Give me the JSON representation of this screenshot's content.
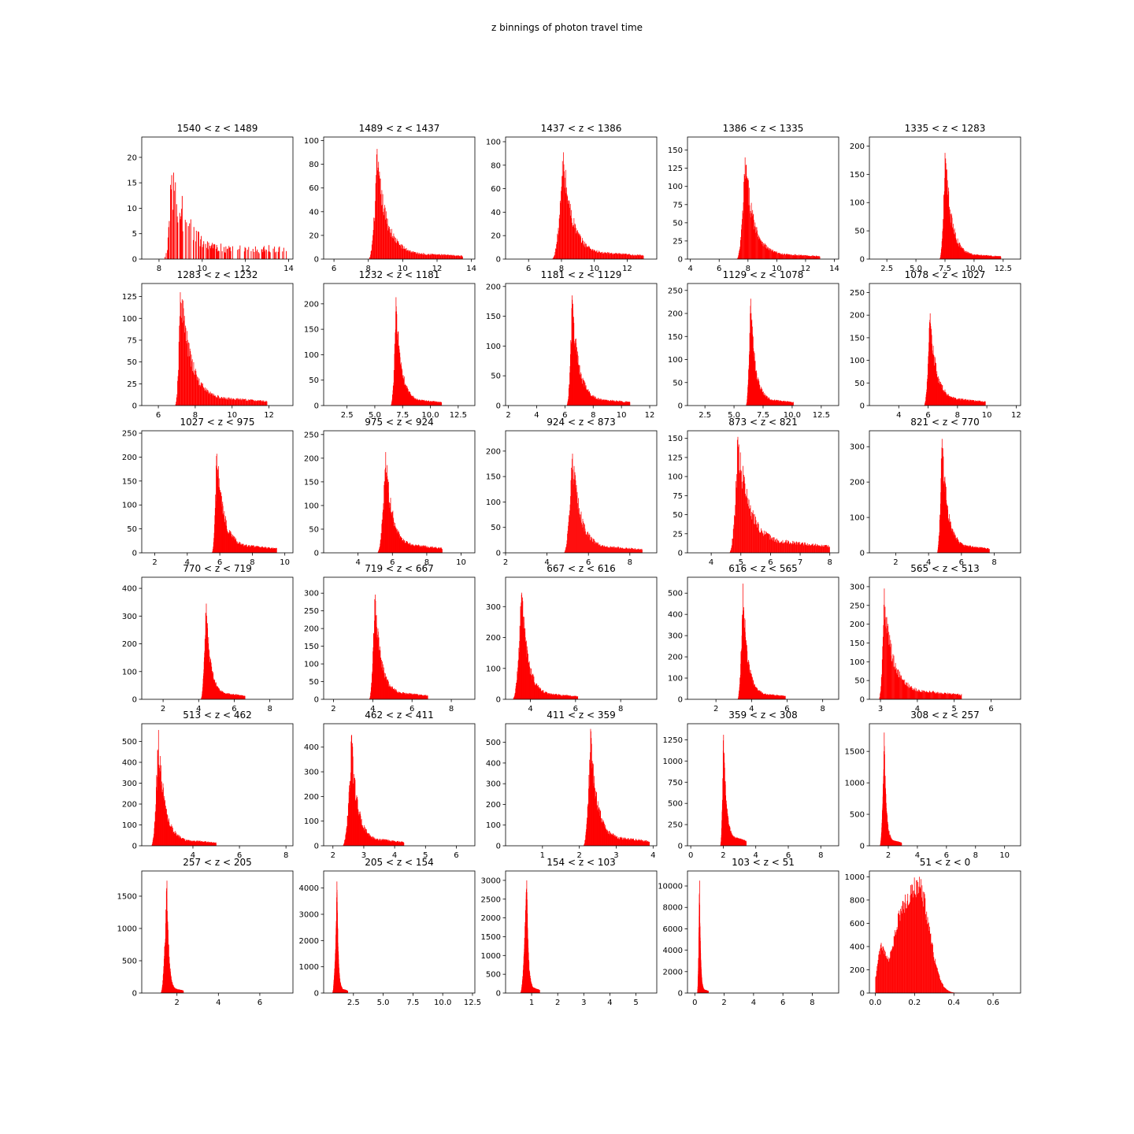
{
  "figure": {
    "suptitle": "z binnings of photon travel time",
    "colors": {
      "bars": "#ff0000",
      "axes": "#000000",
      "background": "#ffffff"
    }
  },
  "chart_data": [
    {
      "type": "bar",
      "title": "1540 < z < 1489",
      "xlim": [
        7.2,
        14.2
      ],
      "ylim": [
        0,
        24
      ],
      "xticks": [
        8,
        10,
        12,
        14
      ],
      "xtick_labels": [
        "8",
        "10",
        "12",
        "14"
      ],
      "yticks": [
        0,
        5,
        10,
        15,
        20
      ],
      "ytick_labels": [
        "0",
        "5",
        "10",
        "15",
        "20"
      ],
      "peak_x": 8.6,
      "peak_y": 17,
      "x_start": 8.2,
      "x_end": 13.9,
      "tail": 0.2,
      "style": "sparse"
    },
    {
      "type": "bar",
      "title": "1489 < z < 1437",
      "xlim": [
        5.4,
        14.2
      ],
      "ylim": [
        0,
        103
      ],
      "xticks": [
        6,
        8,
        10,
        12,
        14
      ],
      "xtick_labels": [
        "6",
        "8",
        "10",
        "12",
        "14"
      ],
      "yticks": [
        0,
        20,
        40,
        60,
        80,
        100
      ],
      "ytick_labels": [
        "0",
        "20",
        "40",
        "60",
        "80",
        "100"
      ],
      "peak_x": 8.5,
      "peak_y": 93,
      "x_start": 8.0,
      "x_end": 13.5,
      "tail": 0.09
    },
    {
      "type": "bar",
      "title": "1437 < z < 1386",
      "xlim": [
        4.6,
        13.8
      ],
      "ylim": [
        0,
        104
      ],
      "xticks": [
        6,
        8,
        10,
        12
      ],
      "xtick_labels": [
        "6",
        "8",
        "10",
        "12"
      ],
      "yticks": [
        0,
        20,
        40,
        60,
        80,
        100
      ],
      "ytick_labels": [
        "0",
        "20",
        "40",
        "60",
        "80",
        "100"
      ],
      "peak_x": 8.1,
      "peak_y": 91,
      "x_start": 7.4,
      "x_end": 13.0,
      "tail": 0.1
    },
    {
      "type": "bar",
      "title": "1386 < z < 1335",
      "xlim": [
        3.8,
        14.3
      ],
      "ylim": [
        0,
        168
      ],
      "xticks": [
        4,
        6,
        8,
        10,
        12,
        14
      ],
      "xtick_labels": [
        "4",
        "6",
        "8",
        "10",
        "12",
        "14"
      ],
      "yticks": [
        0,
        25,
        50,
        75,
        100,
        125,
        150
      ],
      "ytick_labels": [
        "0",
        "25",
        "50",
        "75",
        "100",
        "125",
        "150"
      ],
      "peak_x": 7.8,
      "peak_y": 140,
      "x_start": 7.2,
      "x_end": 13.0,
      "tail": 0.08
    },
    {
      "type": "bar",
      "title": "1335 < z < 1283",
      "xlim": [
        1.0,
        14.0
      ],
      "ylim": [
        0,
        216
      ],
      "xticks": [
        2.5,
        5.0,
        7.5,
        10.0,
        12.5
      ],
      "xtick_labels": [
        "2.5",
        "5.0",
        "7.5",
        "10.0",
        "12.5"
      ],
      "yticks": [
        0,
        50,
        100,
        150,
        200
      ],
      "ytick_labels": [
        "0",
        "50",
        "100",
        "150",
        "200"
      ],
      "peak_x": 7.5,
      "peak_y": 188,
      "x_start": 7.0,
      "x_end": 12.3,
      "tail": 0.07
    },
    {
      "type": "bar",
      "title": "1283 < z < 1232",
      "xlim": [
        5.1,
        13.3
      ],
      "ylim": [
        0,
        140
      ],
      "xticks": [
        6,
        8,
        10,
        12
      ],
      "xtick_labels": [
        "6",
        "8",
        "10",
        "12"
      ],
      "yticks": [
        0,
        25,
        50,
        75,
        100,
        125
      ],
      "ytick_labels": [
        "0",
        "25",
        "50",
        "75",
        "100",
        "125"
      ],
      "peak_x": 7.2,
      "peak_y": 130,
      "x_start": 6.9,
      "x_end": 11.9,
      "tail": 0.1
    },
    {
      "type": "bar",
      "title": "1232 < z < 1181",
      "xlim": [
        0.4,
        14.0
      ],
      "ylim": [
        0,
        240
      ],
      "xticks": [
        2.5,
        5.0,
        7.5,
        10.0,
        12.5
      ],
      "xtick_labels": [
        "2.5",
        "5.0",
        "7.5",
        "10.0",
        "12.5"
      ],
      "yticks": [
        0,
        50,
        100,
        150,
        200
      ],
      "ytick_labels": [
        "0",
        "50",
        "100",
        "150",
        "200"
      ],
      "peak_x": 6.9,
      "peak_y": 213,
      "x_start": 6.4,
      "x_end": 11.0,
      "tail": 0.09
    },
    {
      "type": "bar",
      "title": "1181 < z < 1129",
      "xlim": [
        1.8,
        12.5
      ],
      "ylim": [
        0,
        205
      ],
      "xticks": [
        2,
        4,
        6,
        8,
        10,
        12
      ],
      "xtick_labels": [
        "2",
        "4",
        "6",
        "8",
        "10",
        "12"
      ],
      "yticks": [
        0,
        50,
        100,
        150,
        200
      ],
      "ytick_labels": [
        "0",
        "50",
        "100",
        "150",
        "200"
      ],
      "peak_x": 6.5,
      "peak_y": 185,
      "x_start": 6.1,
      "x_end": 10.6,
      "tail": 0.09
    },
    {
      "type": "bar",
      "title": "1129 < z < 1078",
      "xlim": [
        1.0,
        14.0
      ],
      "ylim": [
        0,
        265
      ],
      "xticks": [
        2.5,
        5.0,
        7.5,
        10.0,
        12.5
      ],
      "xtick_labels": [
        "2.5",
        "5.0",
        "7.5",
        "10.0",
        "12.5"
      ],
      "yticks": [
        0,
        50,
        100,
        150,
        200,
        250
      ],
      "ytick_labels": [
        "0",
        "50",
        "100",
        "150",
        "200",
        "250"
      ],
      "peak_x": 6.4,
      "peak_y": 232,
      "x_start": 6.0,
      "x_end": 10.1,
      "tail": 0.09
    },
    {
      "type": "bar",
      "title": "1078 < z < 1027",
      "xlim": [
        2.0,
        12.3
      ],
      "ylim": [
        0,
        270
      ],
      "xticks": [
        4,
        6,
        8,
        10,
        12
      ],
      "xtick_labels": [
        "4",
        "6",
        "8",
        "10",
        "12"
      ],
      "yticks": [
        0,
        50,
        100,
        150,
        200,
        250
      ],
      "ytick_labels": [
        "0",
        "50",
        "100",
        "150",
        "200",
        "250"
      ],
      "peak_x": 6.1,
      "peak_y": 204,
      "x_start": 5.7,
      "x_end": 9.9,
      "tail": 0.12
    },
    {
      "type": "bar",
      "title": "1027 < z <  975",
      "xlim": [
        1.2,
        10.5
      ],
      "ylim": [
        0,
        255
      ],
      "xticks": [
        2,
        4,
        6,
        8,
        10
      ],
      "xtick_labels": [
        "2",
        "4",
        "6",
        "8",
        "10"
      ],
      "yticks": [
        0,
        50,
        100,
        150,
        200,
        250
      ],
      "ytick_labels": [
        "0",
        "50",
        "100",
        "150",
        "200",
        "250"
      ],
      "peak_x": 5.8,
      "peak_y": 207,
      "x_start": 5.5,
      "x_end": 9.5,
      "tail": 0.12
    },
    {
      "type": "bar",
      "title": "975 < z <  924",
      "xlim": [
        2.0,
        10.8
      ],
      "ylim": [
        0,
        258
      ],
      "xticks": [
        4,
        6,
        8,
        10
      ],
      "xtick_labels": [
        "4",
        "6",
        "8",
        "10"
      ],
      "yticks": [
        0,
        50,
        100,
        150,
        200,
        250
      ],
      "ytick_labels": [
        "0",
        "50",
        "100",
        "150",
        "200",
        "250"
      ],
      "peak_x": 5.6,
      "peak_y": 213,
      "x_start": 5.1,
      "x_end": 8.9,
      "tail": 0.13
    },
    {
      "type": "bar",
      "title": "924 < z <  873",
      "xlim": [
        2.0,
        9.3
      ],
      "ylim": [
        0,
        240
      ],
      "xticks": [
        2,
        4,
        6,
        8
      ],
      "xtick_labels": [
        "2",
        "4",
        "6",
        "8"
      ],
      "yticks": [
        0,
        50,
        100,
        150,
        200
      ],
      "ytick_labels": [
        "0",
        "50",
        "100",
        "150",
        "200"
      ],
      "peak_x": 5.2,
      "peak_y": 195,
      "x_start": 4.8,
      "x_end": 8.6,
      "tail": 0.1
    },
    {
      "type": "bar",
      "title": "873 < z <  821",
      "xlim": [
        3.2,
        8.3
      ],
      "ylim": [
        0,
        160
      ],
      "xticks": [
        4,
        5,
        6,
        7,
        8
      ],
      "xtick_labels": [
        "4",
        "5",
        "6",
        "7",
        "8"
      ],
      "yticks": [
        0,
        25,
        50,
        75,
        100,
        125,
        150
      ],
      "ytick_labels": [
        "0",
        "25",
        "50",
        "75",
        "100",
        "125",
        "150"
      ],
      "peak_x": 4.9,
      "peak_y": 152,
      "x_start": 4.6,
      "x_end": 8.0,
      "tail": 0.16
    },
    {
      "type": "bar",
      "title": "821 < z <  770",
      "xlim": [
        0.4,
        9.6
      ],
      "ylim": [
        0,
        345
      ],
      "xticks": [
        2,
        4,
        6,
        8
      ],
      "xtick_labels": [
        "2",
        "4",
        "6",
        "8"
      ],
      "yticks": [
        0,
        100,
        200,
        300
      ],
      "ytick_labels": [
        "0",
        "100",
        "200",
        "300"
      ],
      "peak_x": 4.8,
      "peak_y": 322,
      "x_start": 4.5,
      "x_end": 7.7,
      "tail": 0.1
    },
    {
      "type": "bar",
      "title": "770 < z <  719",
      "xlim": [
        0.8,
        9.3
      ],
      "ylim": [
        0,
        440
      ],
      "xticks": [
        2,
        4,
        6,
        8
      ],
      "xtick_labels": [
        "2",
        "4",
        "6",
        "8"
      ],
      "yticks": [
        0,
        100,
        200,
        300,
        400
      ],
      "ytick_labels": [
        "0",
        "100",
        "200",
        "300",
        "400"
      ],
      "peak_x": 4.4,
      "peak_y": 345,
      "x_start": 4.1,
      "x_end": 6.6,
      "tail": 0.1
    },
    {
      "type": "bar",
      "title": "719 < z <  667",
      "xlim": [
        1.5,
        9.2
      ],
      "ylim": [
        0,
        345
      ],
      "xticks": [
        2,
        4,
        6,
        8
      ],
      "xtick_labels": [
        "2",
        "4",
        "6",
        "8"
      ],
      "yticks": [
        0,
        50,
        100,
        150,
        200,
        250,
        300
      ],
      "ytick_labels": [
        "0",
        "50",
        "100",
        "150",
        "200",
        "250",
        "300"
      ],
      "peak_x": 4.1,
      "peak_y": 296,
      "x_start": 3.8,
      "x_end": 6.8,
      "tail": 0.1
    },
    {
      "type": "bar",
      "title": "667 < z <  616",
      "xlim": [
        2.9,
        9.6
      ],
      "ylim": [
        0,
        395
      ],
      "xticks": [
        4,
        6,
        8
      ],
      "xtick_labels": [
        "4",
        "6",
        "8"
      ],
      "yticks": [
        0,
        100,
        200,
        300
      ],
      "ytick_labels": [
        "0",
        "100",
        "200",
        "300"
      ],
      "peak_x": 3.6,
      "peak_y": 345,
      "x_start": 3.2,
      "x_end": 6.1,
      "tail": 0.08
    },
    {
      "type": "bar",
      "title": "616 < z <  565",
      "xlim": [
        0.4,
        8.9
      ],
      "ylim": [
        0,
        575
      ],
      "xticks": [
        2,
        4,
        6,
        8
      ],
      "xtick_labels": [
        "2",
        "4",
        "6",
        "8"
      ],
      "yticks": [
        0,
        100,
        200,
        300,
        400,
        500
      ],
      "ytick_labels": [
        "0",
        "100",
        "200",
        "300",
        "400",
        "500"
      ],
      "peak_x": 3.5,
      "peak_y": 545,
      "x_start": 3.2,
      "x_end": 5.9,
      "tail": 0.08
    },
    {
      "type": "bar",
      "title": "565 < z <  513",
      "xlim": [
        2.7,
        6.8
      ],
      "ylim": [
        0,
        325
      ],
      "xticks": [
        3,
        4,
        5,
        6
      ],
      "xtick_labels": [
        "3",
        "4",
        "5",
        "6"
      ],
      "yticks": [
        0,
        50,
        100,
        150,
        200,
        250,
        300
      ],
      "ytick_labels": [
        "0",
        "50",
        "100",
        "150",
        "200",
        "250",
        "300"
      ],
      "peak_x": 3.1,
      "peak_y": 295,
      "x_start": 2.95,
      "x_end": 5.2,
      "tail": 0.13
    },
    {
      "type": "bar",
      "title": "513 < z <  462",
      "xlim": [
        1.8,
        8.3
      ],
      "ylim": [
        0,
        585
      ],
      "xticks": [
        4,
        6,
        8
      ],
      "xtick_labels": [
        "4",
        "6",
        "8"
      ],
      "yticks": [
        0,
        100,
        200,
        300,
        400,
        500
      ],
      "ytick_labels": [
        "0",
        "100",
        "200",
        "300",
        "400",
        "500"
      ],
      "peak_x": 2.5,
      "peak_y": 555,
      "x_start": 2.2,
      "x_end": 5.0,
      "tail": 0.08
    },
    {
      "type": "bar",
      "title": "462 < z <  411",
      "xlim": [
        1.7,
        6.6
      ],
      "ylim": [
        0,
        495
      ],
      "xticks": [
        2,
        3,
        4,
        5,
        6
      ],
      "xtick_labels": [
        "2",
        "3",
        "4",
        "5",
        "6"
      ],
      "yticks": [
        0,
        100,
        200,
        300,
        400
      ],
      "ytick_labels": [
        "0",
        "100",
        "200",
        "300",
        "400"
      ],
      "peak_x": 2.6,
      "peak_y": 450,
      "x_start": 2.3,
      "x_end": 4.3,
      "tail": 0.1
    },
    {
      "type": "bar",
      "title": "411 < z <  359",
      "xlim": [
        0.0,
        4.1
      ],
      "ylim": [
        0,
        590
      ],
      "xticks": [
        1,
        2,
        3,
        4
      ],
      "xtick_labels": [
        "1",
        "2",
        "3",
        "4"
      ],
      "yticks": [
        0,
        100,
        200,
        300,
        400,
        500
      ],
      "ytick_labels": [
        "0",
        "100",
        "200",
        "300",
        "400",
        "500"
      ],
      "peak_x": 2.3,
      "peak_y": 565,
      "x_start": 2.1,
      "x_end": 3.9,
      "tail": 0.12
    },
    {
      "type": "bar",
      "title": "359 < z <  308",
      "xlim": [
        -0.2,
        9.1
      ],
      "ylim": [
        0,
        1440
      ],
      "xticks": [
        0,
        2,
        4,
        6,
        8
      ],
      "xtick_labels": [
        "0",
        "2",
        "4",
        "6",
        "8"
      ],
      "yticks": [
        0,
        250,
        500,
        750,
        1000,
        1250
      ],
      "ytick_labels": [
        "0",
        "250",
        "500",
        "750",
        "1000",
        "1250"
      ],
      "peak_x": 2.0,
      "peak_y": 1310,
      "x_start": 1.8,
      "x_end": 3.4,
      "tail": 0.12
    },
    {
      "type": "bar",
      "title": "308 < z <  257",
      "xlim": [
        0.7,
        11.1
      ],
      "ylim": [
        0,
        1940
      ],
      "xticks": [
        2,
        4,
        6,
        8,
        10
      ],
      "xtick_labels": [
        "2",
        "4",
        "6",
        "8",
        "10"
      ],
      "yticks": [
        0,
        500,
        1000,
        1500
      ],
      "ytick_labels": [
        "0",
        "500",
        "1000",
        "1500"
      ],
      "peak_x": 1.7,
      "peak_y": 1800,
      "x_start": 1.4,
      "x_end": 2.9,
      "tail": 0.08
    },
    {
      "type": "bar",
      "title": "257 < z <  205",
      "xlim": [
        0.3,
        7.6
      ],
      "ylim": [
        0,
        1890
      ],
      "xticks": [
        2,
        4,
        6
      ],
      "xtick_labels": [
        "2",
        "4",
        "6"
      ],
      "yticks": [
        0,
        500,
        1000,
        1500
      ],
      "ytick_labels": [
        "0",
        "500",
        "1000",
        "1500"
      ],
      "peak_x": 1.5,
      "peak_y": 1740,
      "x_start": 1.2,
      "x_end": 2.3,
      "tail": 0.06
    },
    {
      "type": "bar",
      "title": "205 < z <  154",
      "xlim": [
        0.0,
        12.7
      ],
      "ylim": [
        0,
        4650
      ],
      "xticks": [
        2.5,
        5.0,
        7.5,
        10.0,
        12.5
      ],
      "xtick_labels": [
        "2.5",
        "5.0",
        "7.5",
        "10.0",
        "12.5"
      ],
      "yticks": [
        0,
        1000,
        2000,
        3000,
        4000
      ],
      "ytick_labels": [
        "0",
        "1000",
        "2000",
        "3000",
        "4000"
      ],
      "peak_x": 1.1,
      "peak_y": 4250,
      "x_start": 0.7,
      "x_end": 2.0,
      "tail": 0.06
    },
    {
      "type": "bar",
      "title": "154 < z <  103",
      "xlim": [
        0.0,
        5.8
      ],
      "ylim": [
        0,
        3250
      ],
      "xticks": [
        1,
        2,
        3,
        4,
        5
      ],
      "xtick_labels": [
        "1",
        "2",
        "3",
        "4",
        "5"
      ],
      "yticks": [
        0,
        500,
        1000,
        1500,
        2000,
        2500,
        3000
      ],
      "ytick_labels": [
        "0",
        "500",
        "1000",
        "1500",
        "2000",
        "2500",
        "3000"
      ],
      "peak_x": 0.8,
      "peak_y": 3000,
      "x_start": 0.55,
      "x_end": 1.3,
      "tail": 0.07
    },
    {
      "type": "bar",
      "title": "103 < z <   51",
      "xlim": [
        -0.5,
        9.8
      ],
      "ylim": [
        0,
        11400
      ],
      "xticks": [
        0,
        2,
        4,
        6,
        8
      ],
      "xtick_labels": [
        "0",
        "2",
        "4",
        "6",
        "8"
      ],
      "yticks": [
        0,
        2000,
        4000,
        6000,
        8000,
        10000
      ],
      "ytick_labels": [
        "0",
        "2000",
        "4000",
        "6000",
        "8000",
        "10000"
      ],
      "peak_x": 0.3,
      "peak_y": 10500,
      "x_start": 0.15,
      "x_end": 0.9,
      "tail": 0.05
    },
    {
      "type": "bar",
      "title": "51 < z <    0",
      "xlim": [
        -0.03,
        0.74
      ],
      "ylim": [
        0,
        1050
      ],
      "xticks": [
        0.0,
        0.2,
        0.4,
        0.6
      ],
      "xtick_labels": [
        "0.0",
        "0.2",
        "0.4",
        "0.6"
      ],
      "yticks": [
        0,
        200,
        400,
        600,
        800,
        1000
      ],
      "ytick_labels": [
        "0",
        "200",
        "400",
        "600",
        "800",
        "1000"
      ],
      "peak_x": 0.22,
      "peak_y": 1000,
      "x_start": 0.0,
      "x_end": 0.52,
      "tail": 0.0,
      "style": "bimodal"
    }
  ]
}
